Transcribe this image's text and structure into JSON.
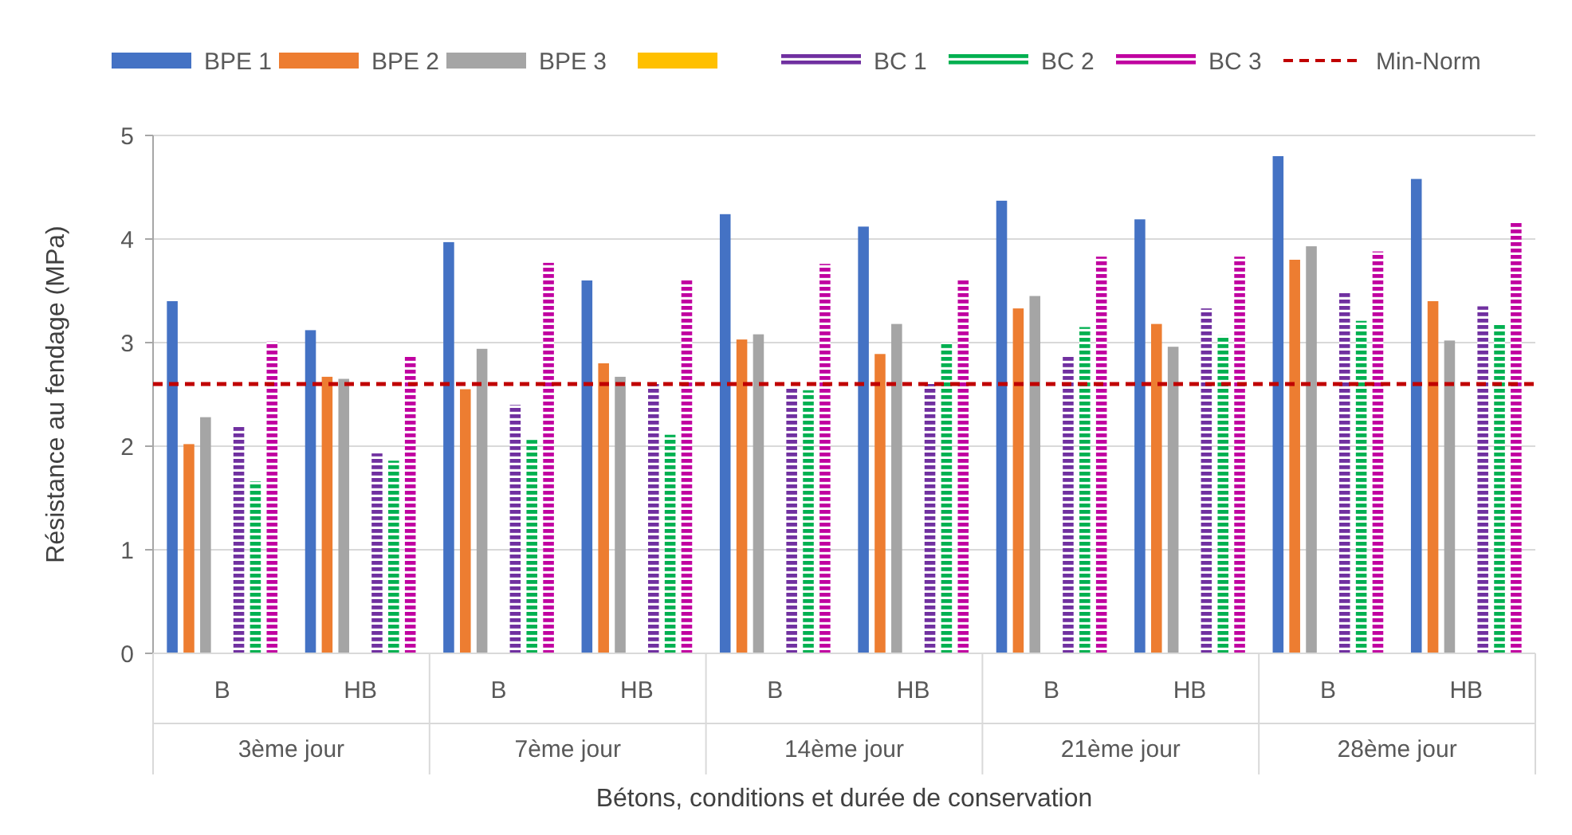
{
  "chart_data": {
    "type": "bar",
    "ylabel": "Résistance au fendage (MPa)",
    "xlabel": "Bétons, conditions et durée de conservation",
    "categories": [
      "B",
      "HB",
      "B",
      "HB",
      "B",
      "HB",
      "B",
      "HB",
      "B",
      "HB"
    ],
    "annotations": [
      "3ème jour",
      "7ème jour",
      "14ème jour",
      "21ème jour",
      "28ème jour"
    ],
    "ylim": [
      0,
      5
    ],
    "yticks": [
      0,
      1,
      2,
      3,
      4,
      5
    ],
    "grid": "y",
    "legend": "top",
    "series": [
      {
        "name": "BPE 1",
        "color": "#4472c4",
        "values": [
          3.4,
          3.12,
          3.97,
          3.6,
          4.24,
          4.12,
          4.37,
          4.19,
          4.8,
          4.58
        ]
      },
      {
        "name": "BPE 2",
        "color": "#ed7d31",
        "values": [
          2.02,
          2.67,
          2.55,
          2.8,
          3.03,
          2.89,
          3.33,
          3.18,
          3.8,
          3.4
        ]
      },
      {
        "name": "BPE 3",
        "color": "#a5a5a5",
        "values": [
          2.28,
          2.65,
          2.94,
          2.67,
          3.08,
          3.18,
          3.45,
          2.96,
          3.93,
          3.02
        ]
      },
      {
        "color": "#ffc000",
        "values": [
          null,
          null,
          null,
          null,
          null,
          null,
          null,
          null,
          null,
          null
        ]
      },
      {
        "name": "BC 1",
        "color": "#7030a0",
        "line_style": "dashed",
        "values": [
          2.2,
          1.93,
          2.4,
          2.6,
          2.57,
          2.6,
          2.88,
          3.33,
          3.48,
          3.35
        ]
      },
      {
        "name": "BC 2",
        "color": "#00b050",
        "line_style": "dashed",
        "values": [
          1.66,
          1.86,
          2.06,
          2.11,
          2.54,
          3.0,
          3.15,
          3.07,
          3.21,
          3.17
        ]
      },
      {
        "name": "BC 3",
        "color": "#c000a0",
        "line_style": "dashed",
        "values": [
          3.01,
          2.87,
          3.77,
          3.6,
          3.76,
          3.6,
          3.83,
          3.83,
          3.88,
          4.17
        ]
      }
    ],
    "ref_lines": [
      {
        "axis": "y",
        "value": 2.6,
        "label": "Min-Norm",
        "color": "#c00000",
        "line_style": "dashed"
      }
    ]
  }
}
